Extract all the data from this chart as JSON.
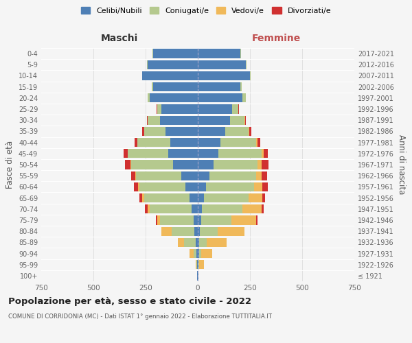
{
  "age_groups": [
    "100+",
    "95-99",
    "90-94",
    "85-89",
    "80-84",
    "75-79",
    "70-74",
    "65-69",
    "60-64",
    "55-59",
    "50-54",
    "45-49",
    "40-44",
    "35-39",
    "30-34",
    "25-29",
    "20-24",
    "15-19",
    "10-14",
    "5-9",
    "0-4"
  ],
  "birth_years": [
    "≤ 1921",
    "1922-1926",
    "1927-1931",
    "1932-1936",
    "1937-1941",
    "1942-1946",
    "1947-1951",
    "1952-1956",
    "1957-1961",
    "1962-1966",
    "1967-1971",
    "1972-1976",
    "1977-1981",
    "1982-1986",
    "1987-1991",
    "1992-1996",
    "1997-2001",
    "2002-2006",
    "2007-2011",
    "2012-2016",
    "2017-2021"
  ],
  "male": {
    "celibi": [
      2,
      3,
      5,
      10,
      15,
      20,
      30,
      40,
      60,
      80,
      120,
      140,
      130,
      155,
      180,
      175,
      230,
      215,
      265,
      240,
      215
    ],
    "coniugati": [
      0,
      4,
      15,
      55,
      110,
      160,
      200,
      215,
      220,
      215,
      200,
      195,
      160,
      100,
      60,
      20,
      10,
      5,
      3,
      2,
      1
    ],
    "vedovi": [
      0,
      3,
      18,
      30,
      50,
      15,
      10,
      12,
      5,
      3,
      2,
      1,
      1,
      0,
      0,
      0,
      0,
      0,
      0,
      0,
      0
    ],
    "divorziati": [
      0,
      0,
      0,
      0,
      0,
      5,
      12,
      12,
      22,
      22,
      28,
      18,
      12,
      10,
      5,
      2,
      0,
      0,
      0,
      0,
      0
    ]
  },
  "female": {
    "nubili": [
      2,
      3,
      5,
      8,
      10,
      15,
      20,
      30,
      40,
      55,
      75,
      100,
      110,
      130,
      155,
      165,
      215,
      205,
      250,
      230,
      205
    ],
    "coniugate": [
      0,
      3,
      10,
      35,
      85,
      145,
      195,
      215,
      230,
      225,
      210,
      205,
      170,
      115,
      70,
      30,
      15,
      5,
      3,
      2,
      1
    ],
    "vedove": [
      0,
      25,
      55,
      95,
      130,
      120,
      90,
      65,
      40,
      25,
      20,
      10,
      5,
      3,
      1,
      0,
      0,
      0,
      0,
      0,
      0
    ],
    "divorziate": [
      0,
      0,
      0,
      0,
      0,
      5,
      10,
      12,
      25,
      28,
      35,
      22,
      15,
      10,
      5,
      2,
      0,
      0,
      0,
      0,
      0
    ]
  },
  "colors": {
    "celibi_nubili": "#4e7fb5",
    "coniugati": "#b5c98e",
    "vedovi": "#f0b95a",
    "divorziati": "#d03030"
  },
  "xlim": 750,
  "title": "Popolazione per età, sesso e stato civile - 2022",
  "subtitle": "COMUNE DI CORRIDONIA (MC) - Dati ISTAT 1° gennaio 2022 - Elaborazione TUTTITALIA.IT",
  "xlabel_left": "Maschi",
  "xlabel_right": "Femmine",
  "ylabel_left": "Fasce di età",
  "ylabel_right": "Anni di nascita",
  "legend_labels": [
    "Celibi/Nubili",
    "Coniugati/e",
    "Vedovi/e",
    "Divorziati/e"
  ],
  "bg_color": "#f5f5f5"
}
